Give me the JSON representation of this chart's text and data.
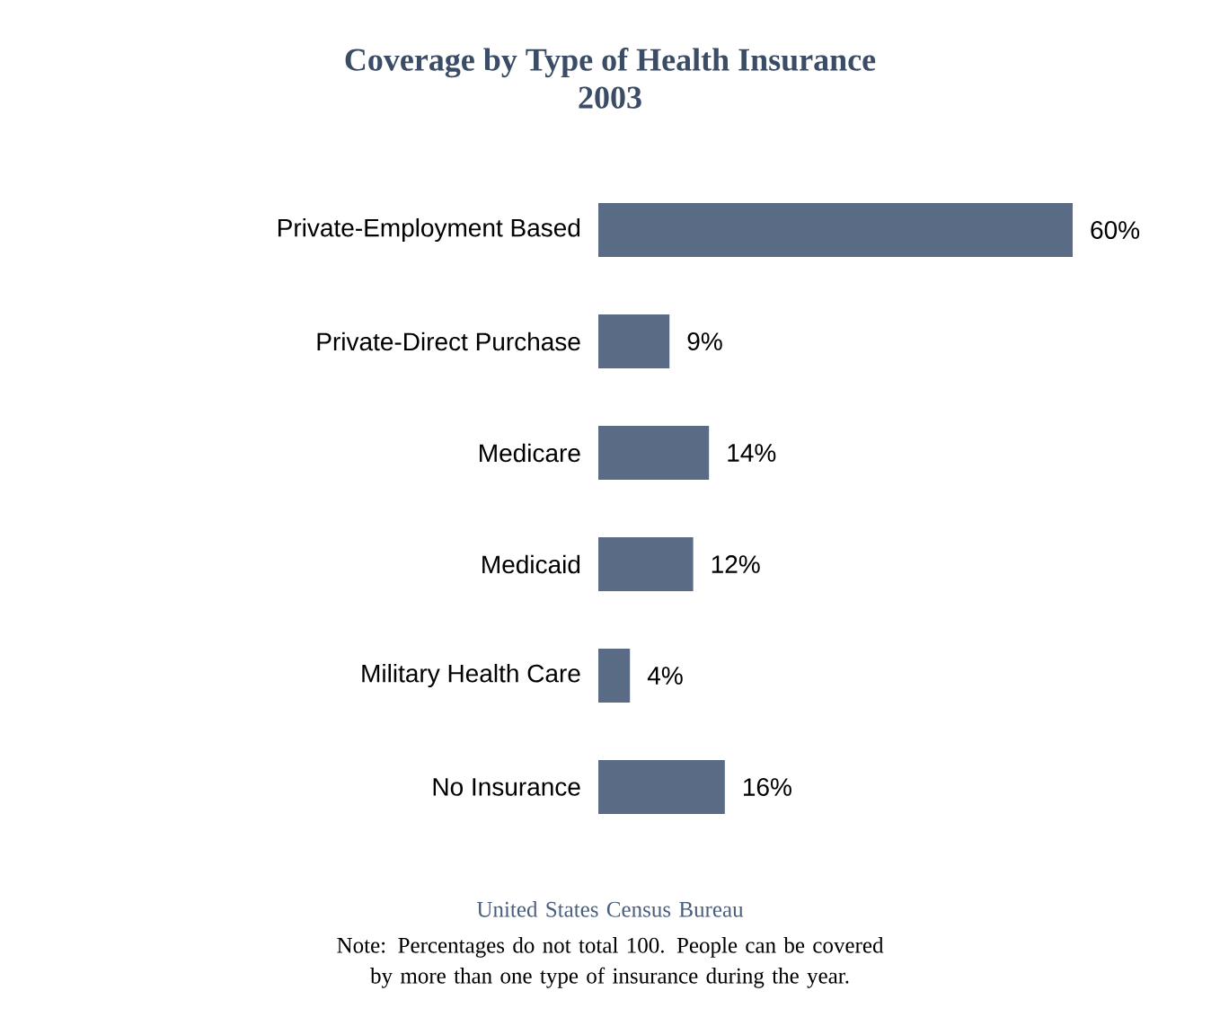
{
  "chart_data": {
    "type": "bar",
    "orientation": "horizontal",
    "title": "Coverage by Type of Health Insurance",
    "subtitle": "2003",
    "categories": [
      "Private-Employment Based",
      "Private-Direct Purchase",
      "Medicare",
      "Medicaid",
      "Military Health Care",
      "No Insurance"
    ],
    "values": [
      60,
      9,
      14,
      12,
      4,
      16
    ],
    "value_labels": [
      "60%",
      "9%",
      "14%",
      "12%",
      "4%",
      "16%"
    ],
    "color": "#5a6b85",
    "annotations": [
      "United States Census Bureau",
      "Note: Percentages do not total 100. People can be covered by more than one type of insurance during the year."
    ]
  }
}
